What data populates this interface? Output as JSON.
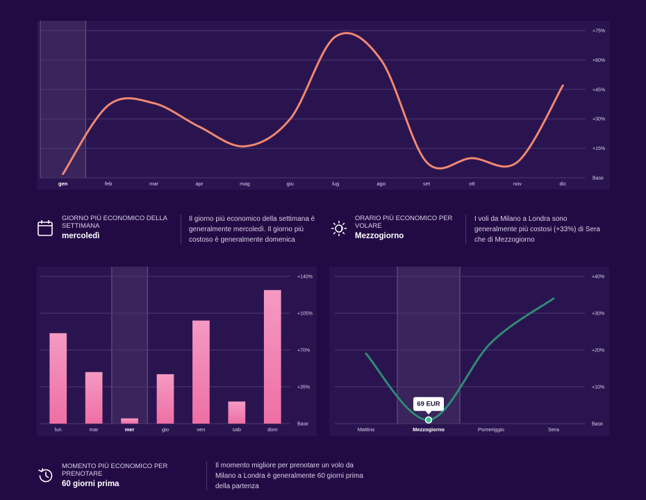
{
  "chart_data": [
    {
      "type": "line",
      "categories": [
        "gen",
        "feb",
        "mar",
        "apr",
        "mag",
        "giu",
        "lug",
        "ago",
        "set",
        "ott",
        "nov",
        "dic"
      ],
      "highlight": "gen",
      "values": [
        2,
        37,
        38,
        26,
        16,
        30,
        72,
        60,
        8,
        10,
        8,
        47
      ],
      "yticks": [
        {
          "v": 0,
          "label": "Base"
        },
        {
          "v": 15,
          "label": "+15%"
        },
        {
          "v": 30,
          "label": "+30%"
        },
        {
          "v": 45,
          "label": "+45%"
        },
        {
          "v": 60,
          "label": "+60%"
        },
        {
          "v": 75,
          "label": "+75%"
        }
      ],
      "ylim": [
        0,
        75
      ],
      "color": "#f08870",
      "grid": true
    },
    {
      "type": "bar",
      "categories": [
        "lun",
        "mar",
        "mer",
        "gio",
        "ven",
        "sab",
        "dom"
      ],
      "highlight": "mer",
      "values": [
        86,
        49,
        5,
        47,
        98,
        21,
        127
      ],
      "yticks": [
        {
          "v": 0,
          "label": "Base"
        },
        {
          "v": 35,
          "label": "+35%"
        },
        {
          "v": 70,
          "label": "+70%"
        },
        {
          "v": 105,
          "label": "+105%"
        },
        {
          "v": 140,
          "label": "+140%"
        }
      ],
      "ylim": [
        0,
        140
      ],
      "color": "#ee6fa4",
      "grid": true
    },
    {
      "type": "line",
      "categories": [
        "Mattino",
        "Mezzogiorno",
        "Pomeriggio",
        "Sera"
      ],
      "highlight": "Mezzogiorno",
      "values": [
        19,
        1,
        22,
        34
      ],
      "yticks": [
        {
          "v": 0,
          "label": "Base"
        },
        {
          "v": 10,
          "label": "+10%"
        },
        {
          "v": 20,
          "label": "+20%"
        },
        {
          "v": 30,
          "label": "+30%"
        },
        {
          "v": 40,
          "label": "+40%"
        }
      ],
      "ylim": [
        0,
        40
      ],
      "color": "#2e8b74",
      "grid": true,
      "annotation": {
        "category": "Mezzogiorno",
        "label": "69 EUR"
      }
    }
  ],
  "info": {
    "day": {
      "label": "GIORNO PIÙ ECONOMICO DELLA SETTIMANA",
      "value": "mercoledì",
      "description": "Il giorno più economico della settimana è generalmente mercoledì. Il giorno più costoso è generalmente domenica",
      "icon": "calendar-icon"
    },
    "time": {
      "label": "ORARIO PIÙ ECONOMICO PER VOLARE",
      "value": "Mezzogiorno",
      "description": "I voli da Milano a Londra sono generalmente più costosi (+33%) di Sera che di Mezzogiorno",
      "icon": "sun-moon-icon"
    },
    "booking": {
      "label": "MOMENTO PIÙ ECONOMICO PER PRENOTARE",
      "value": "60 giorni prima",
      "description": "Il momento migliore per prenotare un volo da Milano a Londra è generalmente 60 giorni prima della partenza",
      "icon": "clock-history-icon"
    }
  }
}
